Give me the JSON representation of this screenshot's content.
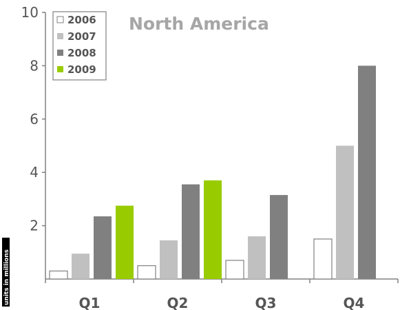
{
  "chart_data": {
    "type": "bar",
    "title": "North America",
    "ylabel": "units in millions",
    "xlabel": "",
    "categories": [
      "Q1",
      "Q2",
      "Q3",
      "Q4"
    ],
    "yticks": [
      "2",
      "4",
      "6",
      "8",
      "10"
    ],
    "ylim": [
      0,
      10
    ],
    "legend_position": "top-left",
    "grid": false,
    "series": [
      {
        "name": "2006",
        "values": [
          0.3,
          0.5,
          0.7,
          1.5
        ],
        "color": "#ffffff",
        "stroke": "#808080"
      },
      {
        "name": "2007",
        "values": [
          0.95,
          1.45,
          1.6,
          5.0
        ],
        "color": "#c0c0c0"
      },
      {
        "name": "2008",
        "values": [
          2.35,
          3.55,
          3.15,
          8.0
        ],
        "color": "#808080"
      },
      {
        "name": "2009",
        "values": [
          2.75,
          3.7,
          null,
          null
        ],
        "color": "#99cc00"
      }
    ]
  }
}
